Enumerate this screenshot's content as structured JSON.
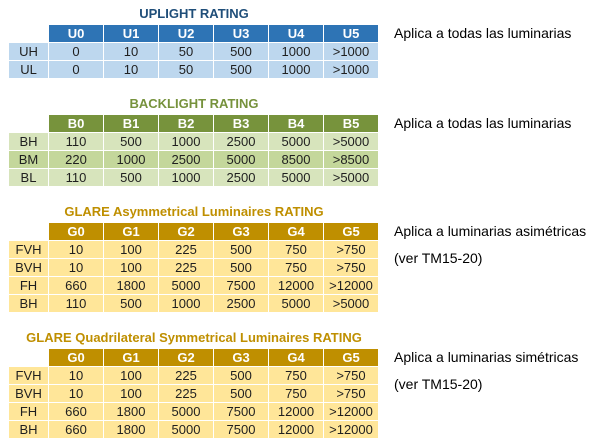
{
  "tables": [
    {
      "name": "uplight-rating",
      "title": "UPLIGHT RATING",
      "theme": "blue",
      "headers": [
        "U0",
        "U1",
        "U2",
        "U3",
        "U4",
        "U5"
      ],
      "rows": [
        {
          "label": "UH",
          "values": [
            "0",
            "10",
            "50",
            "500",
            "1000",
            ">1000"
          ]
        },
        {
          "label": "UL",
          "values": [
            "0",
            "10",
            "50",
            "500",
            "1000",
            ">1000"
          ]
        }
      ],
      "note_lines": [
        "Aplica a todas las luminarias"
      ]
    },
    {
      "name": "backlight-rating",
      "title": "BACKLIGHT RATING",
      "theme": "green",
      "headers": [
        "B0",
        "B1",
        "B2",
        "B3",
        "B4",
        "B5"
      ],
      "rows": [
        {
          "label": "BH",
          "values": [
            "110",
            "500",
            "1000",
            "2500",
            "5000",
            ">5000"
          ]
        },
        {
          "label": "BM",
          "values": [
            "220",
            "1000",
            "2500",
            "5000",
            "8500",
            ">8500"
          ],
          "highlight": true
        },
        {
          "label": "BL",
          "values": [
            "110",
            "500",
            "1000",
            "2500",
            "5000",
            ">5000"
          ]
        }
      ],
      "note_lines": [
        "Aplica a todas las luminarias"
      ]
    },
    {
      "name": "glare-asymmetrical-rating",
      "title": "GLARE Asymmetrical Luminaires RATING",
      "theme": "gold",
      "headers": [
        "G0",
        "G1",
        "G2",
        "G3",
        "G4",
        "G5"
      ],
      "rows": [
        {
          "label": "FVH",
          "values": [
            "10",
            "100",
            "225",
            "500",
            "750",
            ">750"
          ]
        },
        {
          "label": "BVH",
          "values": [
            "10",
            "100",
            "225",
            "500",
            "750",
            ">750"
          ]
        },
        {
          "label": "FH",
          "values": [
            "660",
            "1800",
            "5000",
            "7500",
            "12000",
            ">12000"
          ]
        },
        {
          "label": "BH",
          "values": [
            "110",
            "500",
            "1000",
            "2500",
            "5000",
            ">5000"
          ]
        }
      ],
      "note_lines": [
        "Aplica a luminarias asimétricas",
        "(ver TM15-20)"
      ]
    },
    {
      "name": "glare-symmetrical-rating",
      "title": "GLARE Quadrilateral Symmetrical Luminaires RATING",
      "theme": "gold",
      "headers": [
        "G0",
        "G1",
        "G2",
        "G3",
        "G4",
        "G5"
      ],
      "rows": [
        {
          "label": "FVH",
          "values": [
            "10",
            "100",
            "225",
            "500",
            "750",
            ">750"
          ]
        },
        {
          "label": "BVH",
          "values": [
            "10",
            "100",
            "225",
            "500",
            "750",
            ">750"
          ]
        },
        {
          "label": "FH",
          "values": [
            "660",
            "1800",
            "5000",
            "7500",
            "12000",
            ">12000"
          ]
        },
        {
          "label": "BH",
          "values": [
            "660",
            "1800",
            "5000",
            "7500",
            "12000",
            ">12000"
          ]
        }
      ],
      "note_lines": [
        "Aplica a luminarias simétricas",
        "(ver TM15-20)"
      ]
    }
  ],
  "colors": {
    "blue_title": "#1F4E79",
    "blue_header_bg": "#2E74B5",
    "blue_cell_bg": "#BDD7EE",
    "green_title": "#76923C",
    "green_header_bg": "#77933C",
    "green_cell_bg": "#D7E4BC",
    "green_highlight_row_bg": "#C4D79B",
    "gold_title": "#BF8F00",
    "gold_header_bg": "#BF8F00",
    "gold_cell_bg": "#FFE699",
    "header_text": "#FFFFFF",
    "body_text": "#1F1F1F"
  }
}
